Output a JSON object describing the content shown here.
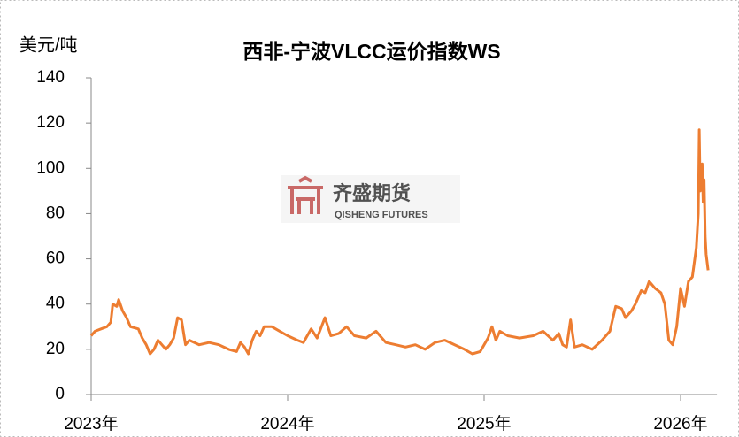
{
  "chart_data": {
    "type": "line",
    "title": "西非-宁波VLCC运价指数WS",
    "y_label": "美元/吨",
    "watermark": {
      "name": "齐盛期货",
      "subtitle": "QISHENG FUTURES"
    },
    "x": [
      2023.0,
      2023.02,
      2023.05,
      2023.08,
      2023.1,
      2023.11,
      2023.13,
      2023.14,
      2023.16,
      2023.18,
      2023.2,
      2023.24,
      2023.26,
      2023.28,
      2023.3,
      2023.32,
      2023.34,
      2023.36,
      2023.38,
      2023.4,
      2023.42,
      2023.44,
      2023.46,
      2023.48,
      2023.5,
      2023.55,
      2023.6,
      2023.65,
      2023.7,
      2023.74,
      2023.76,
      2023.78,
      2023.8,
      2023.82,
      2023.84,
      2023.86,
      2023.88,
      2023.92,
      2023.96,
      2024.0,
      2024.05,
      2024.08,
      2024.12,
      2024.15,
      2024.19,
      2024.22,
      2024.26,
      2024.3,
      2024.34,
      2024.4,
      2024.45,
      2024.5,
      2024.55,
      2024.6,
      2024.65,
      2024.7,
      2024.75,
      2024.8,
      2024.85,
      2024.9,
      2024.94,
      2024.98,
      2025.0,
      2025.02,
      2025.04,
      2025.06,
      2025.08,
      2025.12,
      2025.18,
      2025.25,
      2025.3,
      2025.35,
      2025.38,
      2025.4,
      2025.42,
      2025.44,
      2025.46,
      2025.5,
      2025.55,
      2025.6,
      2025.64,
      2025.67,
      2025.7,
      2025.72,
      2025.75,
      2025.77,
      2025.8,
      2025.82,
      2025.84,
      2025.87,
      2025.9,
      2025.92,
      2025.94,
      2025.96,
      2025.98,
      2026.0,
      2026.02,
      2026.04,
      2026.06,
      2026.08,
      2026.09,
      2026.095,
      2026.1,
      2026.11,
      2026.115,
      2026.12,
      2026.125,
      2026.13,
      2026.14
    ],
    "series": [
      {
        "name": "西非-宁波VLCC运价指数WS",
        "color": "#ed7d31",
        "values": [
          26,
          28,
          29,
          30,
          32,
          40,
          39,
          42,
          37,
          34,
          30,
          29,
          25,
          22,
          18,
          20,
          24,
          22,
          20,
          22,
          25,
          34,
          33,
          22,
          24,
          22,
          23,
          22,
          20,
          19,
          23,
          21,
          18,
          24,
          28,
          26,
          30,
          30,
          28,
          26,
          24,
          23,
          29,
          25,
          34,
          26,
          27,
          30,
          26,
          25,
          28,
          23,
          22,
          21,
          22,
          20,
          23,
          24,
          22,
          20,
          18,
          19,
          22,
          25,
          30,
          24,
          28,
          26,
          25,
          26,
          28,
          24,
          27,
          22,
          21,
          33,
          21,
          22,
          20,
          24,
          28,
          39,
          38,
          34,
          37,
          40,
          46,
          45,
          50,
          47,
          45,
          40,
          24,
          22,
          30,
          47,
          39,
          50,
          52,
          65,
          80,
          117,
          90,
          102,
          85,
          95,
          70,
          62,
          55
        ]
      }
    ],
    "xlim": [
      2023,
      2026.14
    ],
    "xticks": [
      {
        "value": 2023,
        "label": "2023年"
      },
      {
        "value": 2024,
        "label": "2024年"
      },
      {
        "value": 2025,
        "label": "2025年"
      },
      {
        "value": 2026,
        "label": "2026年"
      }
    ],
    "ylim": [
      0,
      140
    ],
    "yticks": [
      0,
      20,
      40,
      60,
      80,
      100,
      120,
      140
    ],
    "grid": false
  }
}
